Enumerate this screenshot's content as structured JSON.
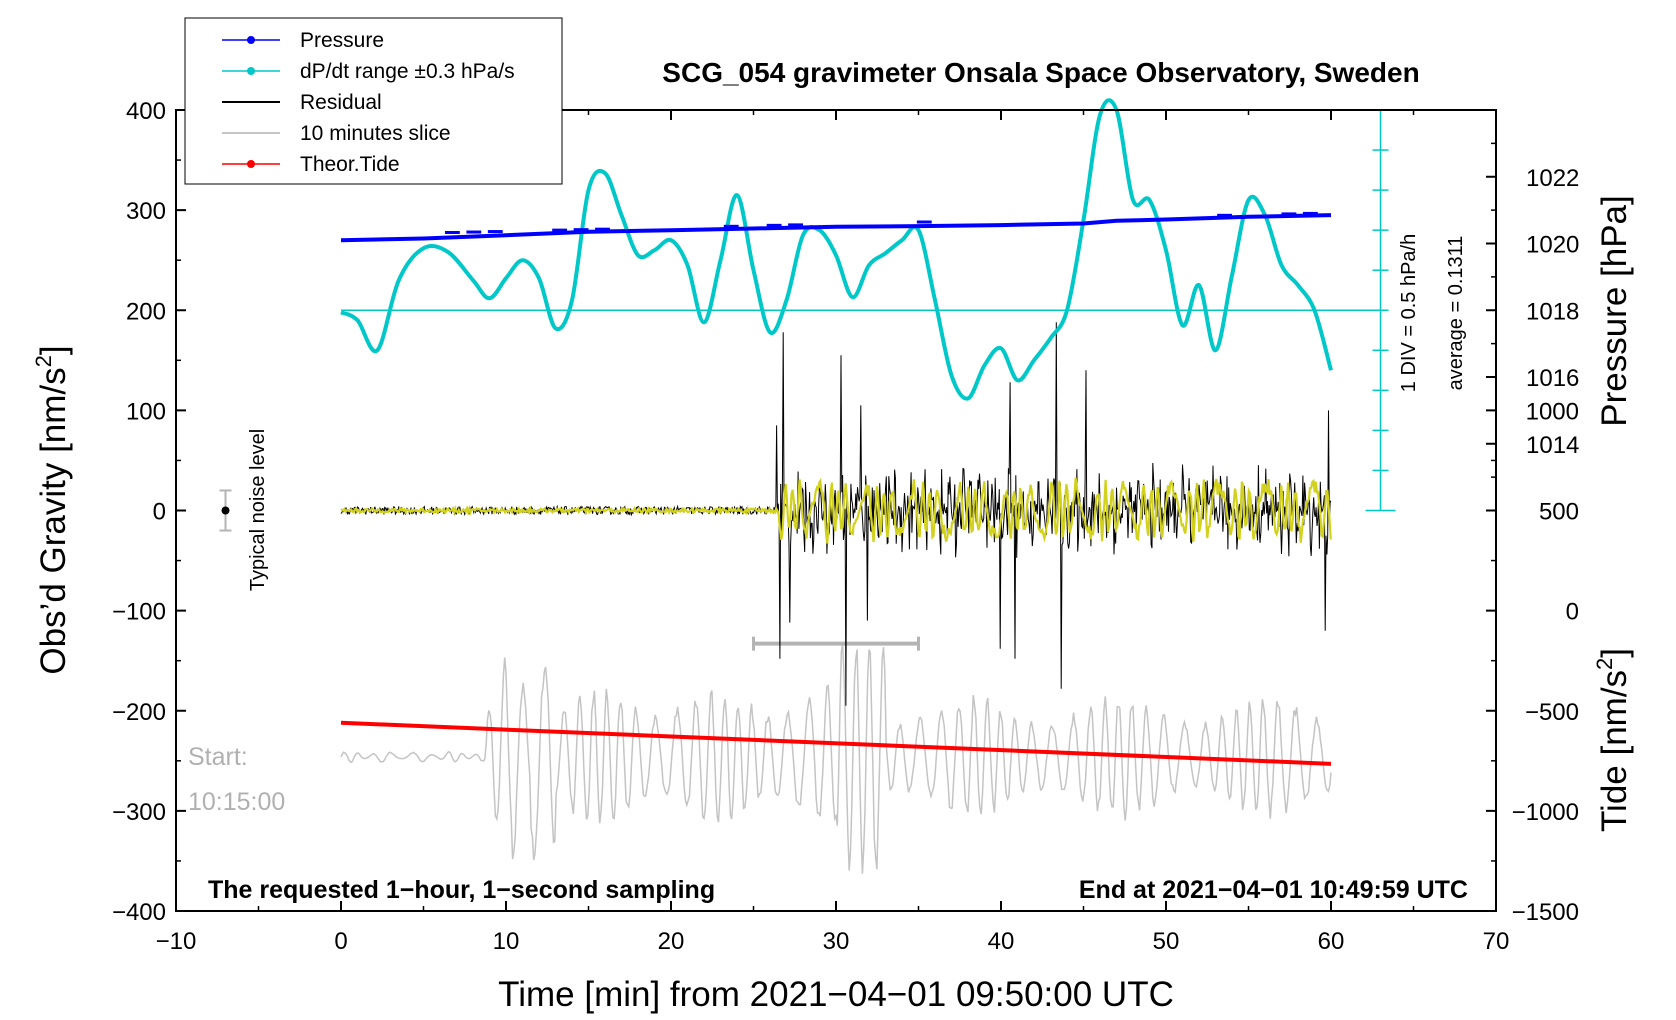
{
  "chart_data": {
    "type": "line",
    "title": "SCG_054 gravimeter Onsala Space Observatory, Sweden",
    "xlabel": "Time [min] from 2021−04−01 09:50:00 UTC",
    "ylabel_left": "Obs’d Gravity [nm/s",
    "ylabel_left_sup": "2",
    "ylabel_left_end": "]",
    "ylabel_right_pressure": "Pressure [hPa]",
    "ylabel_right_tide": "Tide [nm/s",
    "ylabel_right_tide_sup": "2",
    "ylabel_right_tide_end": "]",
    "xlim": [
      -10,
      70
    ],
    "ylim_gravity": [
      -400,
      400
    ],
    "x_ticks": [
      "−10",
      "0",
      "10",
      "20",
      "30",
      "40",
      "50",
      "60",
      "70"
    ],
    "x_tick_values": [
      -10,
      0,
      10,
      20,
      30,
      40,
      50,
      60,
      70
    ],
    "y_ticks_gravity": [
      "400",
      "300",
      "200",
      "100",
      "0",
      "−100",
      "−200",
      "−300",
      "−400"
    ],
    "y_tick_values_gravity": [
      400,
      300,
      200,
      100,
      0,
      -100,
      -200,
      -300,
      -400
    ],
    "pressure_axis": {
      "ticks": [
        "1022",
        "1020",
        "1018",
        "1016",
        "1014"
      ],
      "tick_values": [
        1022,
        1020,
        1018,
        1016,
        1014
      ],
      "ref_value": 1018,
      "ref_gravity": 200,
      "hpa_per_100_gravity": 3
    },
    "tide_axis": {
      "ticks": [
        "1000",
        "500",
        "0",
        "−500",
        "−1000",
        "−1500"
      ],
      "tick_values": [
        1000,
        500,
        0,
        -500,
        -1000,
        -1500
      ],
      "ref_value": -1500,
      "ref_gravity": -400,
      "tide_per_100_gravity": 500
    },
    "legend": [
      {
        "label": "Pressure",
        "color": "#0000ff",
        "marker": true
      },
      {
        "label": "dP/dt range ±0.3 hPa/s",
        "color": "#00c8c8",
        "marker": true
      },
      {
        "label": "Residual",
        "color": "#000000",
        "marker": false
      },
      {
        "label": "10 minutes slice",
        "color": "#b4b4b4",
        "marker": false
      },
      {
        "label": "Theor.Tide",
        "color": "#ff0000",
        "marker": true
      }
    ],
    "series": [
      {
        "name": "Pressure",
        "color": "#0000ff",
        "x": [
          0,
          5,
          10,
          15,
          20,
          25,
          30,
          35,
          40,
          45,
          47,
          50,
          55,
          60
        ],
        "values": [
          1020.1,
          1020.15,
          1020.25,
          1020.35,
          1020.4,
          1020.45,
          1020.5,
          1020.52,
          1020.55,
          1020.6,
          1020.68,
          1020.72,
          1020.8,
          1020.85
        ]
      },
      {
        "name": "dP/dt range",
        "color": "#00c8c8",
        "x": [
          0,
          1,
          2.2,
          3.5,
          5,
          6.5,
          8,
          9,
          10,
          11,
          12,
          13,
          14,
          15,
          16,
          17,
          18,
          19,
          20,
          21,
          22,
          23,
          24,
          25,
          26,
          27,
          28,
          29,
          30,
          31,
          32,
          33,
          34,
          35,
          36,
          37,
          38,
          39,
          40,
          41,
          42,
          43,
          44,
          45,
          46,
          47,
          48,
          49,
          50,
          51,
          52,
          53,
          54,
          55,
          56,
          57,
          58,
          59,
          60
        ],
        "values": [
          198,
          190,
          160,
          230,
          262,
          258,
          230,
          212,
          232,
          250,
          232,
          182,
          210,
          320,
          337,
          295,
          255,
          260,
          270,
          245,
          188,
          250,
          315,
          240,
          178,
          210,
          275,
          280,
          255,
          213,
          245,
          257,
          270,
          280,
          210,
          135,
          112,
          145,
          162,
          130,
          150,
          172,
          200,
          290,
          395,
          400,
          310,
          310,
          260,
          185,
          225,
          160,
          235,
          310,
          295,
          245,
          225,
          200,
          140
        ]
      },
      {
        "name": "Theor.Tide",
        "color": "#ff0000",
        "x": [
          0,
          60
        ],
        "values": [
          -212,
          -253
        ]
      }
    ],
    "residual": {
      "name": "Residual",
      "color": "#000000",
      "quiet_until": 26.5,
      "quiet_amplitude": 4,
      "active_amplitude": 48,
      "spikes": [
        {
          "x": 26.4,
          "y": 85
        },
        {
          "x": 26.6,
          "y": -148
        },
        {
          "x": 26.8,
          "y": 178
        },
        {
          "x": 27.2,
          "y": -112
        },
        {
          "x": 30.3,
          "y": 155
        },
        {
          "x": 30.6,
          "y": -195
        },
        {
          "x": 31.5,
          "y": 105
        },
        {
          "x": 31.9,
          "y": -110
        },
        {
          "x": 40.5,
          "y": 128
        },
        {
          "x": 40.8,
          "y": -148
        },
        {
          "x": 43.3,
          "y": 188
        },
        {
          "x": 43.6,
          "y": -178
        },
        {
          "x": 45.1,
          "y": 140
        },
        {
          "x": 39.9,
          "y": -138
        },
        {
          "x": 59.8,
          "y": 100
        },
        {
          "x": 59.6,
          "y": -120
        }
      ]
    },
    "filtered_residual": {
      "color": "#d2d21e",
      "quiet_amplitude": 2,
      "active_amplitude": 30
    },
    "slice": {
      "name": "10 minutes slice",
      "color": "#b4b4b4",
      "bar_x": [
        25,
        35
      ],
      "bar_y": -133,
      "baseline": -246
    },
    "dpdt_axis": {
      "x": 63,
      "y_top": 400,
      "y_bottom": 0,
      "ref_y": 200,
      "divisions": 10
    },
    "noise_marker": {
      "x": -7,
      "y": 0,
      "err": 20,
      "label": "Typical noise level"
    },
    "annotations": {
      "div_label": "1 DIV = 0.5 hPa/h",
      "average_label": "average = 0.1311",
      "start_label": "Start:",
      "start_time": "10:15:00",
      "bottom_left": "The requested 1−hour, 1−second sampling",
      "bottom_right": "End at 2021−04−01 10:49:59 UTC"
    }
  }
}
